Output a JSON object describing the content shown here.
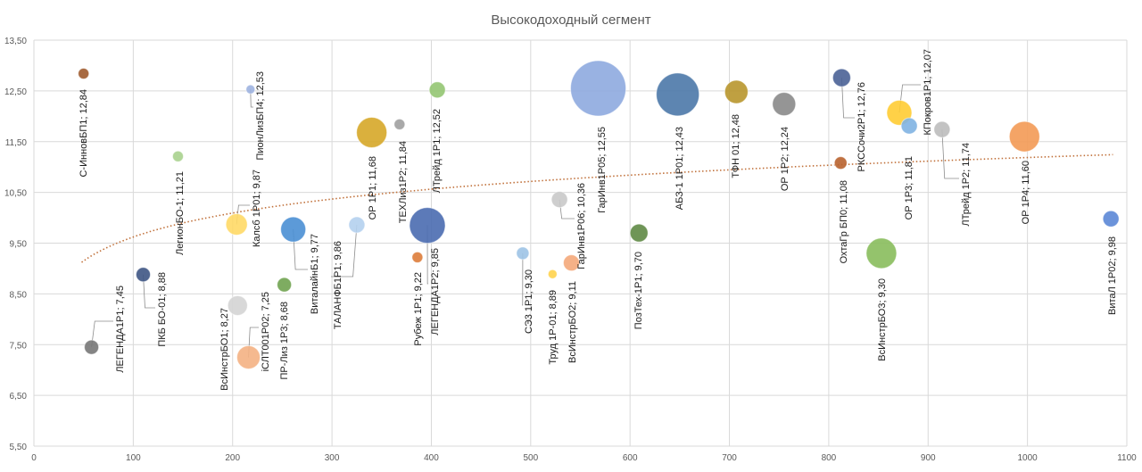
{
  "chart_data": {
    "type": "bubble",
    "title": "Высокодоходный сегмент",
    "xlabel": "",
    "ylabel": "",
    "xlim": [
      0,
      1100
    ],
    "ylim": [
      5.5,
      13.5
    ],
    "x_ticks": [
      "0",
      "100",
      "200",
      "300",
      "400",
      "500",
      "600",
      "700",
      "800",
      "900",
      "1000",
      "1100"
    ],
    "y_ticks": [
      "5,50",
      "6,50",
      "7,50",
      "8,50",
      "9,50",
      "10,50",
      "11,50",
      "12,50",
      "13,50"
    ],
    "grid": true,
    "trendline": {
      "type": "logarithmic",
      "a": 6.49,
      "b": 0.68,
      "color": "#c0703a"
    },
    "points": [
      {
        "name": "С-ИнновБП1",
        "x": 50,
        "y": 12.84,
        "size": 36,
        "color": "#9e5a2c",
        "label": "С-ИнновБП1; 12,84"
      },
      {
        "name": "ЛЕГЕНДА1Р1",
        "x": 58,
        "y": 7.45,
        "size": 64,
        "color": "#777777",
        "label": "ЛЕГЕНДА1Р1; 7,45"
      },
      {
        "name": "ПКБ БО-01",
        "x": 110,
        "y": 8.88,
        "size": 64,
        "color": "#3e5584",
        "label": "ПКБ БО-01; 8,88"
      },
      {
        "name": "ЛегионБО-1",
        "x": 145,
        "y": 11.21,
        "size": 36,
        "color": "#a9d18e",
        "label": "ЛегионБО-1; 11,21"
      },
      {
        "name": "ПионЛизБП4",
        "x": 218,
        "y": 12.53,
        "size": 25,
        "color": "#9db3e0",
        "label": "ПионЛизБП4; 12,53"
      },
      {
        "name": "Калсб 1Р01",
        "x": 204,
        "y": 9.87,
        "size": 144,
        "color": "#ffd966",
        "label": "Калсб 1Р01; 9,87"
      },
      {
        "name": "ВсИнстрБО1",
        "x": 205,
        "y": 8.27,
        "size": 121,
        "color": "#d4d4d4",
        "label": "ВсИнстрБО1; 8,27"
      },
      {
        "name": "iСЛТ001Р02",
        "x": 216,
        "y": 7.25,
        "size": 169,
        "color": "#f4b183",
        "label": "iСЛТ001Р02; 7,25"
      },
      {
        "name": "ПР-Лиз 1Р3",
        "x": 252,
        "y": 8.68,
        "size": 64,
        "color": "#70a350",
        "label": "ПР-Лиз 1Р3; 8,68"
      },
      {
        "name": "ВиталайнБ1",
        "x": 261,
        "y": 9.77,
        "size": 196,
        "color": "#4a8fd4",
        "label": "ВиталайнБ1; 9,77"
      },
      {
        "name": "ТАЛАНФБ1Р1",
        "x": 325,
        "y": 9.86,
        "size": 81,
        "color": "#b4d0ee",
        "label": "ТАЛАНФБ1Р1; 9,86"
      },
      {
        "name": "ОР 1Р1",
        "x": 340,
        "y": 11.68,
        "size": 289,
        "color": "#d6a728",
        "label": "ОР 1Р1; 11,68"
      },
      {
        "name": "ТЕХЛиз1Р2",
        "x": 368,
        "y": 11.84,
        "size": 36,
        "color": "#a0a0a0",
        "label": "ТЕХЛиз1Р2; 11,84"
      },
      {
        "name": "ЛТрейд 1Р1",
        "x": 406,
        "y": 12.52,
        "size": 81,
        "color": "#93c572",
        "label": "ЛТрейд 1Р1; 12,52"
      },
      {
        "name": "ЛЕГЕНДА1Р2",
        "x": 396,
        "y": 9.85,
        "size": 400,
        "color": "#4a6bb0",
        "label": "ЛЕГЕНДА1Р2; 9,85"
      },
      {
        "name": "Рубеж 1Р1",
        "x": 386,
        "y": 9.22,
        "size": 36,
        "color": "#dd7c3a",
        "label": "Рубеж 1Р1; 9,22"
      },
      {
        "name": "ГарИнв1Р05",
        "x": 568,
        "y": 12.55,
        "size": 961,
        "color": "#8eaadf",
        "label": "ГарИнв1Р05; 12,55"
      },
      {
        "name": "СЭ3 1Р1",
        "x": 492,
        "y": 9.3,
        "size": 49,
        "color": "#9dc3e6",
        "label": "СЭ3 1Р1; 9,30"
      },
      {
        "name": "Труд 1Р-01",
        "x": 522,
        "y": 8.89,
        "size": 25,
        "color": "#ffd34d",
        "label": "Труд 1Р-01; 8,89"
      },
      {
        "name": "ВсИнстрБО2",
        "x": 541,
        "y": 9.11,
        "size": 81,
        "color": "#f4a87a",
        "label": "ВсИнстрБО2; 9,11"
      },
      {
        "name": "ГарИнв1Р06",
        "x": 529,
        "y": 10.36,
        "size": 81,
        "color": "#c9c9c9",
        "label": "ГарИнв1Р06; 10,36"
      },
      {
        "name": "ПозТех-1Р1",
        "x": 609,
        "y": 9.7,
        "size": 100,
        "color": "#5f8a45",
        "label": "ПозТех-1Р1; 9,70"
      },
      {
        "name": "АБЗ-1 1Р01",
        "x": 648,
        "y": 12.43,
        "size": 576,
        "color": "#4b78a8",
        "label": "АБЗ-1 1Р01; 12,43"
      },
      {
        "name": "ТФН 01",
        "x": 707,
        "y": 12.48,
        "size": 169,
        "color": "#b8962c",
        "label": "ТФН 01; 12,48"
      },
      {
        "name": "ОР 1Р2",
        "x": 755,
        "y": 12.24,
        "size": 169,
        "color": "#8a8a8a",
        "label": "ОР 1Р2; 12,24"
      },
      {
        "name": "ОхтаГр БП0",
        "x": 812,
        "y": 11.08,
        "size": 49,
        "color": "#b8622e",
        "label": "ОхтаГр БП0; 11,08"
      },
      {
        "name": "РКССочи2Р1",
        "x": 813,
        "y": 12.76,
        "size": 100,
        "color": "#4a6296",
        "label": "РКССочи2Р1; 12,76"
      },
      {
        "name": "ВсИнстрБО3",
        "x": 853,
        "y": 9.3,
        "size": 289,
        "color": "#88bd5c",
        "label": "ВсИнстрБО3; 9,30"
      },
      {
        "name": "КПокров1Р1",
        "x": 871,
        "y": 12.07,
        "size": 196,
        "color": "#ffcc33",
        "label": "КПокров1Р1; 12,07"
      },
      {
        "name": "ОР 1Р3",
        "x": 881,
        "y": 11.81,
        "size": 81,
        "color": "#7fb2e2",
        "label": "ОР 1Р3; 11,81"
      },
      {
        "name": "ЛТрейд 1Р2",
        "x": 914,
        "y": 11.74,
        "size": 81,
        "color": "#bdbdbd",
        "label": "ЛТрейд 1Р2; 11,74"
      },
      {
        "name": "ОР 1Р4",
        "x": 997,
        "y": 11.6,
        "size": 289,
        "color": "#f39a55",
        "label": "ОР 1Р4; 11,60"
      },
      {
        "name": "ВитаЛ 1Р02",
        "x": 1084,
        "y": 9.98,
        "size": 81,
        "color": "#5b87d6",
        "label": "ВитаЛ 1Р02; 9,98"
      }
    ]
  }
}
